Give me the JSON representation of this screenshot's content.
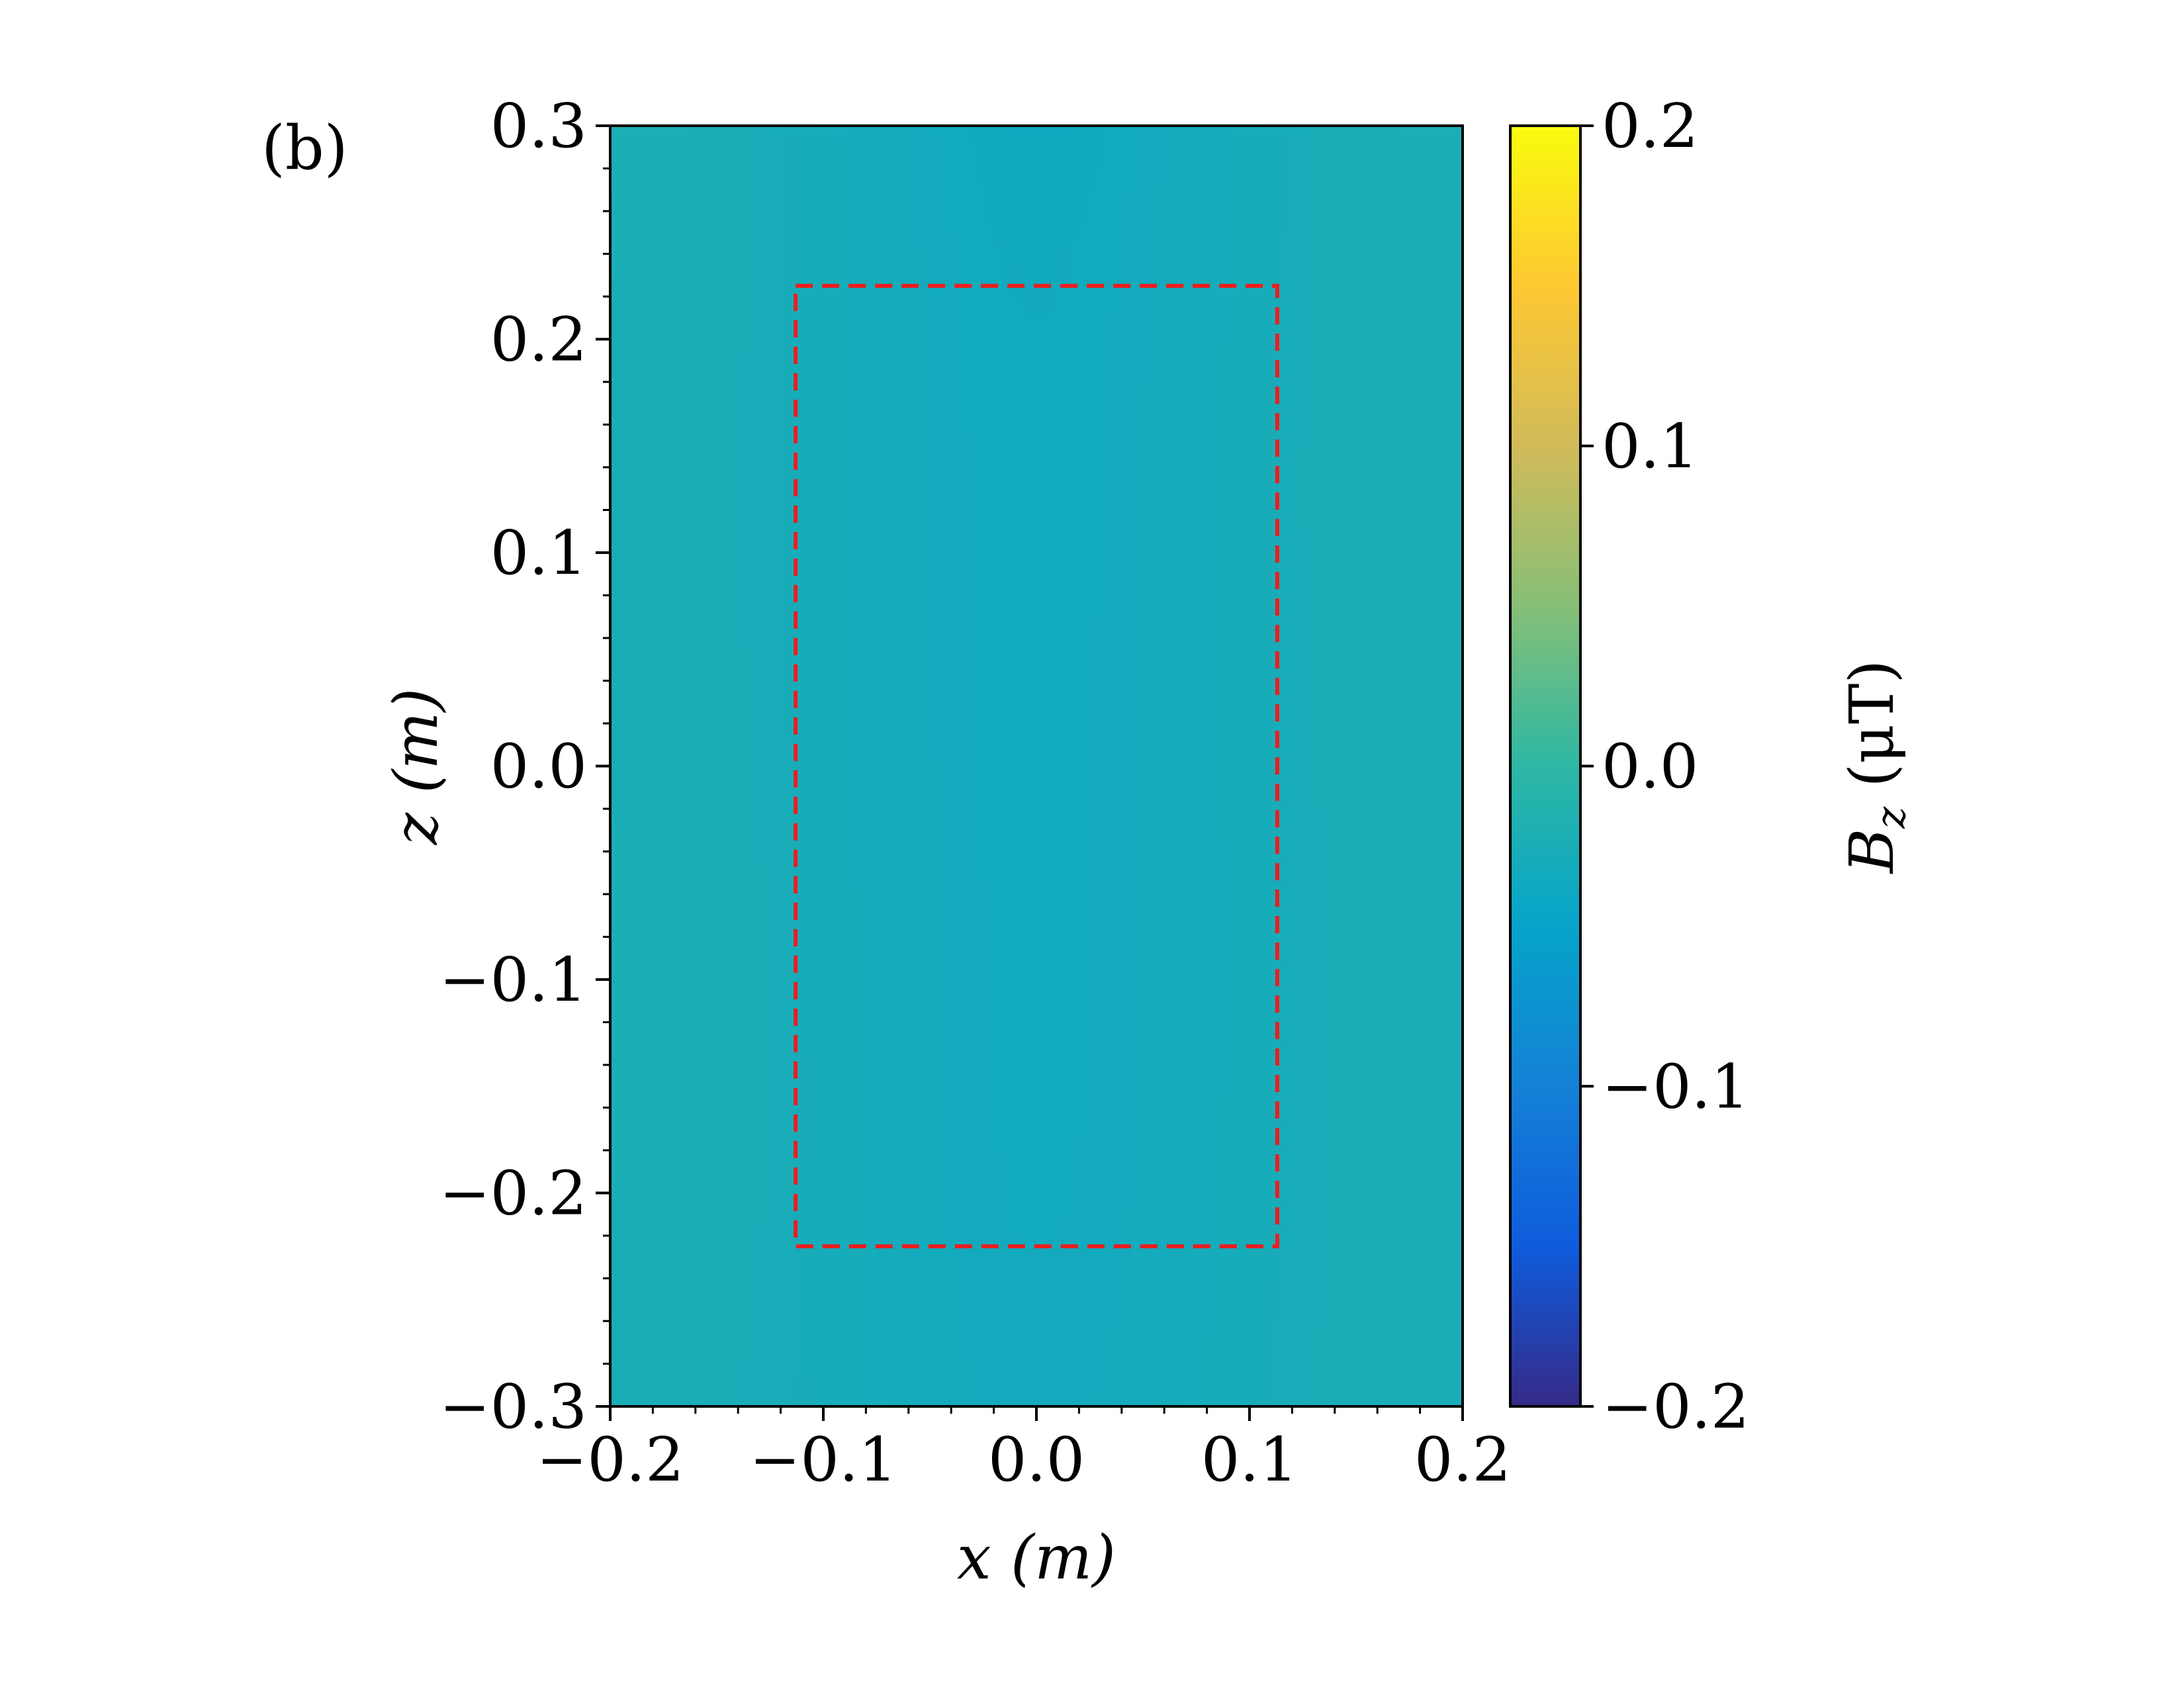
{
  "panel_label": "(b)",
  "chart_data": {
    "type": "heatmap",
    "title": "",
    "xlabel": "x  (m)",
    "ylabel": "z  (m)",
    "xlim": [
      -0.2,
      0.2
    ],
    "ylim": [
      -0.3,
      0.3
    ],
    "x_ticks": [
      -0.2,
      -0.1,
      0.0,
      0.1,
      0.2
    ],
    "x_tick_labels": [
      "−0.2",
      "−0.1",
      "0.0",
      "0.1",
      "0.2"
    ],
    "y_ticks": [
      -0.3,
      -0.2,
      -0.1,
      0.0,
      0.1,
      0.2,
      0.3
    ],
    "y_tick_labels": [
      "−0.3",
      "−0.2",
      "−0.1",
      "0.0",
      "0.1",
      "0.2",
      "0.3"
    ],
    "colorbar": {
      "label": "B_z (μT)",
      "label_main": "B",
      "label_sub": "z",
      "label_unit": " (μT)",
      "range": [
        -0.2,
        0.2
      ],
      "ticks": [
        -0.2,
        -0.1,
        0.0,
        0.1,
        0.2
      ],
      "tick_labels": [
        "−0.2",
        "−0.1",
        "0.0",
        "0.1",
        "0.2"
      ],
      "colormap": "parula",
      "color_stops": [
        "#352a87",
        "#0f5cdd",
        "#1481d6",
        "#06a4ca",
        "#2eb7a4",
        "#87bf77",
        "#d1bb59",
        "#fec832",
        "#f9fb0e"
      ]
    },
    "region_box": {
      "x": [
        -0.113,
        0.113
      ],
      "z": [
        -0.225,
        0.225
      ],
      "style": "dashed",
      "color": "#ee1c1c"
    },
    "grid": false
  }
}
